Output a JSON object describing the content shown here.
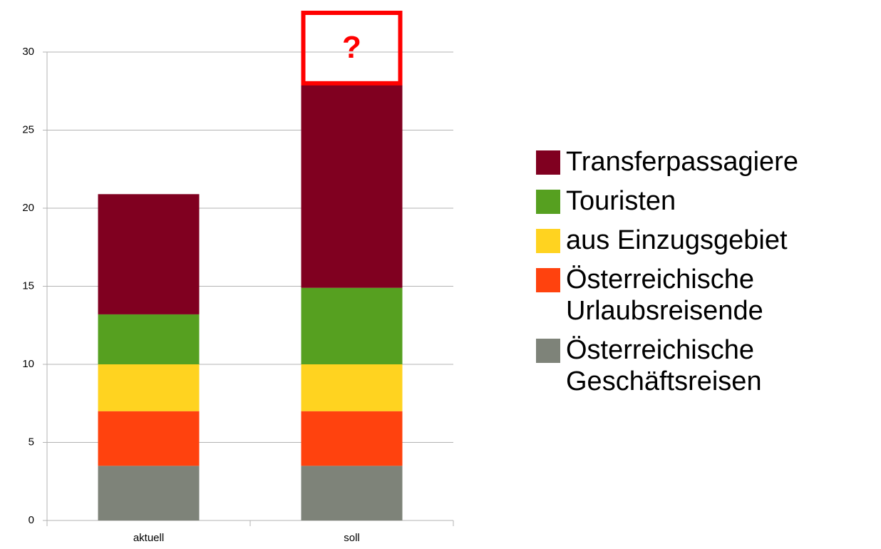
{
  "chart_data": {
    "type": "stacked-bar",
    "categories": [
      "aktuell",
      "soll"
    ],
    "series": [
      {
        "name": "Österreichische Geschäftsreisen",
        "color": "#7e8379",
        "values": [
          3.5,
          3.5
        ]
      },
      {
        "name": "Österreichische Urlaubsreisende",
        "color": "#ff420e",
        "values": [
          3.5,
          3.5
        ]
      },
      {
        "name": "aus Einzugsgebiet",
        "color": "#ffd320",
        "values": [
          3,
          3
        ]
      },
      {
        "name": "Touristen",
        "color": "#56a020",
        "values": [
          3.2,
          4.9
        ]
      },
      {
        "name": "Transferpassagiere",
        "color": "#800020",
        "values": [
          7.7,
          13.1
        ]
      }
    ],
    "ylim": [
      0,
      30
    ],
    "yticks": [
      0,
      5,
      10,
      15,
      20,
      25,
      30
    ],
    "grid": true,
    "annotation": "?",
    "legend": "right"
  }
}
